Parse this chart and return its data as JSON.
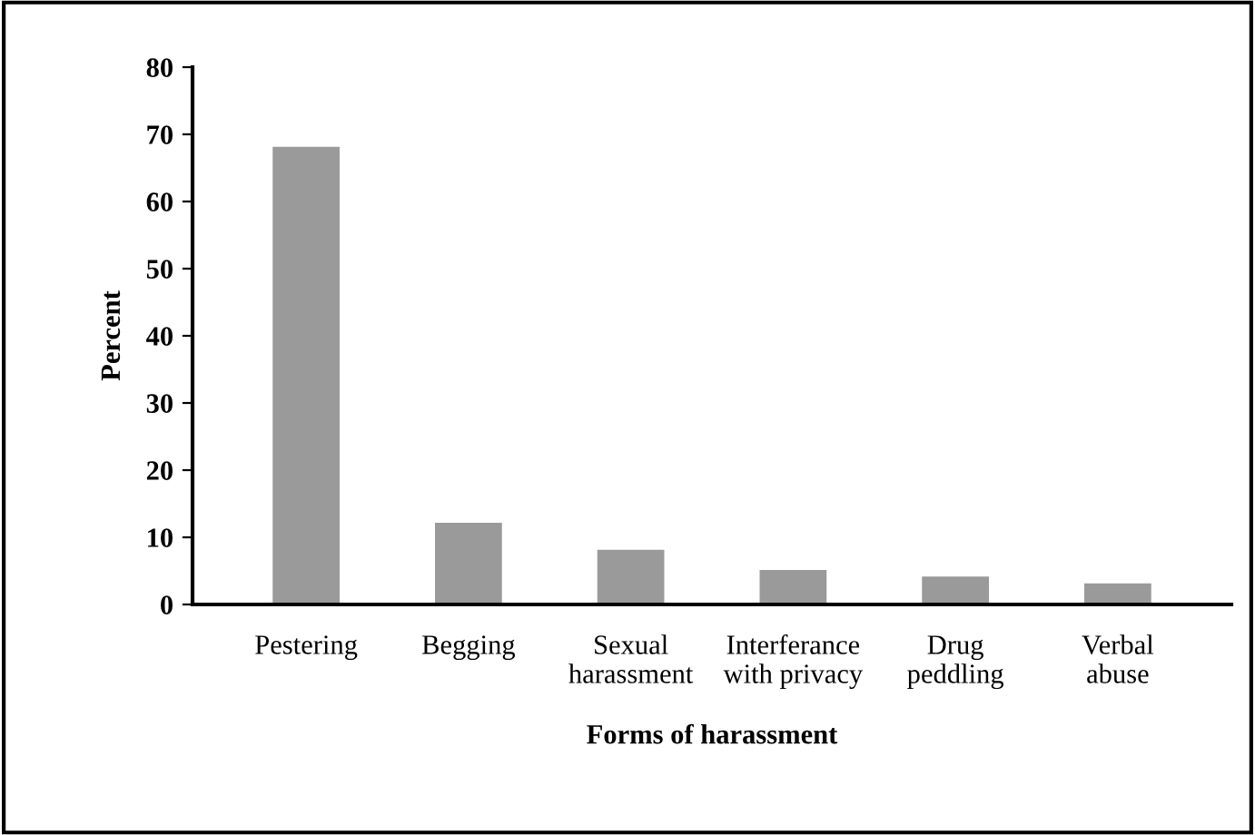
{
  "chart_data": {
    "type": "bar",
    "xlabel": "Forms of harassment",
    "ylabel": "Percent",
    "categories": [
      "Pestering",
      "Begging",
      "Sexual\nharassment",
      "Interferance\nwith privacy",
      "Drug\npeddling",
      "Verbal\nabuse"
    ],
    "values": [
      68,
      12,
      8,
      5,
      4,
      3
    ],
    "color": "#9a9a9a",
    "ylim": [
      0,
      80
    ],
    "yticks": [
      0,
      10,
      20,
      30,
      40,
      50,
      60,
      70,
      80
    ],
    "grid": false
  }
}
